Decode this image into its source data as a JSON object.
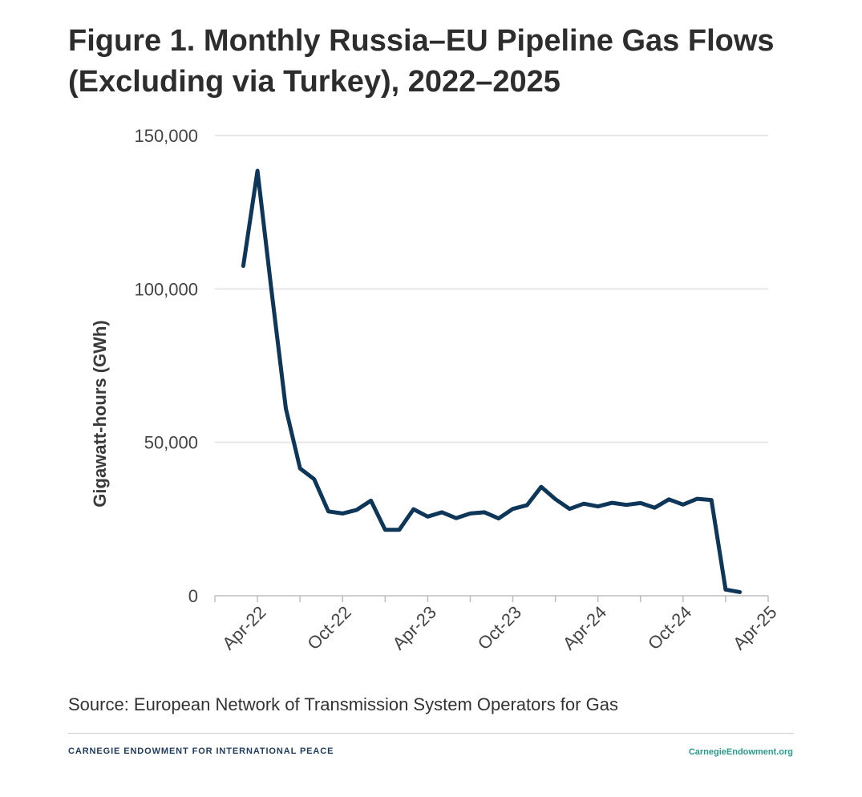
{
  "title_lines": [
    "Figure 1. Monthly Russia–EU Pipeline Gas Flows",
    "(Excluding via Turkey), 2022–2025"
  ],
  "source": "Source: European Network of Transmission System Operators for Gas",
  "footer": {
    "org": "CARNEGIE ENDOWMENT FOR INTERNATIONAL PEACE",
    "url": "CarnegieEndowment.org"
  },
  "colors": {
    "line": "#0d3658",
    "grid": "#e6e6e6",
    "axis": "#bdbdbd",
    "footer_org": "#1d3a5c",
    "footer_url": "#2a9a8a"
  },
  "chart_data": {
    "type": "line",
    "ylabel": "Gigawatt-hours (GWh)",
    "ylim": [
      0,
      150000
    ],
    "yticks": [
      0,
      50000,
      100000,
      150000
    ],
    "ytick_labels": [
      "0",
      "50,000",
      "100,000",
      "150,000"
    ],
    "xticks": [
      "2022-04",
      "2022-10",
      "2023-04",
      "2023-10",
      "2024-04",
      "2024-10",
      "2025-04"
    ],
    "xtick_labels": [
      "Apr-22",
      "Oct-22",
      "Apr-23",
      "Oct-23",
      "Apr-24",
      "Oct-24",
      "Apr-25"
    ],
    "grid": true,
    "series": [
      {
        "x": [
          "2022-03",
          "2022-04",
          "2022-05",
          "2022-06",
          "2022-07",
          "2022-08",
          "2022-09",
          "2022-10",
          "2022-11",
          "2022-12",
          "2023-01",
          "2023-02",
          "2023-03",
          "2023-04",
          "2023-05",
          "2023-06",
          "2023-07",
          "2023-08",
          "2023-09",
          "2023-10",
          "2023-11",
          "2023-12",
          "2024-01",
          "2024-02",
          "2024-03",
          "2024-04",
          "2024-05",
          "2024-06",
          "2024-07",
          "2024-08",
          "2024-09",
          "2024-10",
          "2024-11",
          "2024-12",
          "2025-01",
          "2025-02",
          "2025-03"
        ],
        "values": [
          107500,
          138500,
          99000,
          61000,
          41500,
          38000,
          27500,
          26800,
          28000,
          31000,
          21500,
          21500,
          28200,
          25800,
          27200,
          25300,
          26800,
          27200,
          25200,
          28300,
          29500,
          35500,
          31500,
          28300,
          30000,
          29100,
          30300,
          29600,
          30200,
          28700,
          31400,
          29700,
          31600,
          31200,
          2000,
          1200,
          null
        ]
      }
    ]
  }
}
